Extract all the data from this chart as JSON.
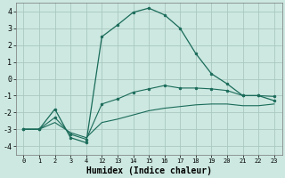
{
  "xlabel": "Humidex (Indice chaleur)",
  "background_color": "#cce8e0",
  "grid_color": "#aac8c0",
  "line_color": "#1a6b5a",
  "ylim": [
    -4.5,
    4.5
  ],
  "yticks": [
    -4,
    -3,
    -2,
    -1,
    0,
    1,
    2,
    3,
    4
  ],
  "x_labels": [
    "0",
    "1",
    "2",
    "3",
    "4",
    "12",
    "13",
    "14",
    "15",
    "16",
    "17",
    "18",
    "19",
    "20",
    "21",
    "22",
    "23"
  ],
  "line1_y": [
    -3.0,
    -3.0,
    -1.8,
    -3.5,
    -3.8,
    2.5,
    3.2,
    3.95,
    4.2,
    3.8,
    3.0,
    1.5,
    0.3,
    -0.3,
    -1.0,
    -1.0,
    -1.3
  ],
  "line2_y": [
    -3.0,
    -3.0,
    -2.3,
    -3.3,
    -3.6,
    -1.5,
    -1.2,
    -0.8,
    -0.6,
    -0.4,
    -0.55,
    -0.55,
    -0.6,
    -0.7,
    -1.0,
    -1.0,
    -1.05
  ],
  "line3_y": [
    -3.0,
    -3.0,
    -2.6,
    -3.2,
    -3.5,
    -2.6,
    -2.4,
    -2.15,
    -1.9,
    -1.75,
    -1.65,
    -1.55,
    -1.5,
    -1.5,
    -1.6,
    -1.6,
    -1.5
  ]
}
